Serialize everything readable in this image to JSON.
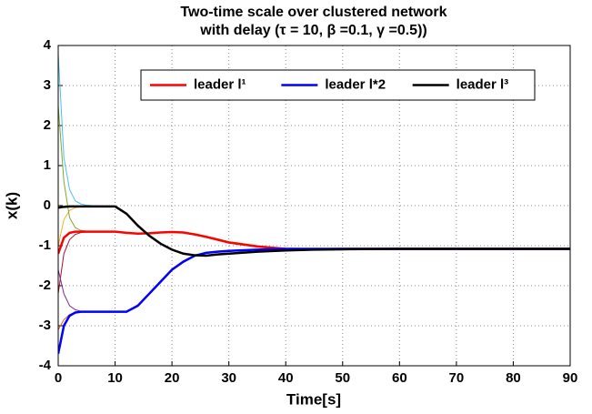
{
  "chart_data": {
    "type": "line",
    "title": [
      "Two-time scale over clustered network",
      "with delay (τ = 10, β =0.1, γ =0.5))"
    ],
    "xlabel": "Time[s]",
    "ylabel": "x(k)",
    "x": [
      0,
      1,
      2,
      3,
      4,
      5,
      6,
      8,
      10,
      12,
      14,
      16,
      18,
      20,
      22,
      24,
      26,
      28,
      30,
      35,
      40,
      45,
      50,
      60,
      70,
      80,
      90
    ],
    "xlim": [
      0,
      90
    ],
    "xticks": [
      0,
      10,
      20,
      30,
      40,
      50,
      60,
      70,
      80,
      90
    ],
    "ylim": [
      -4,
      4
    ],
    "yticks": [
      -4,
      -3,
      -2,
      -1,
      0,
      1,
      2,
      3,
      4
    ],
    "grid": true,
    "legend": "top",
    "followers": [
      {
        "color": "#4dbeee",
        "values": [
          3.8,
          1.2,
          0.4,
          0.12,
          0.04,
          0.01,
          0,
          -0.01,
          -0.02,
          -0.2,
          -0.5,
          -0.75,
          -0.95,
          -1.1,
          -1.2,
          -1.24,
          -1.25,
          -1.22,
          -1.2,
          -1.15,
          -1.12,
          -1.1,
          -1.09,
          -1.08,
          -1.08,
          -1.08,
          -1.08
        ]
      },
      {
        "color": "#edb120",
        "values": [
          -1.0,
          -0.35,
          -0.12,
          -0.05,
          -0.03,
          -0.02,
          -0.02,
          -0.02,
          -0.02,
          -0.22,
          -0.52,
          -0.76,
          -0.96,
          -1.1,
          -1.19,
          -1.23,
          -1.24,
          -1.22,
          -1.2,
          -1.15,
          -1.12,
          -1.1,
          -1.09,
          -1.08,
          -1.08,
          -1.08,
          -1.08
        ]
      },
      {
        "color": "#77ac30",
        "values": [
          2.5,
          0.6,
          -0.3,
          -0.55,
          -0.62,
          -0.64,
          -0.65,
          -0.65,
          -0.65,
          -0.67,
          -0.69,
          -0.68,
          -0.66,
          -0.65,
          -0.66,
          -0.7,
          -0.76,
          -0.83,
          -0.9,
          -1.0,
          -1.07,
          -1.09,
          -1.08,
          -1.08,
          -1.08,
          -1.08,
          -1.08
        ]
      },
      {
        "color": "#a2142f",
        "values": [
          -2.2,
          -1.2,
          -0.85,
          -0.72,
          -0.67,
          -0.66,
          -0.65,
          -0.65,
          -0.65,
          -0.68,
          -0.7,
          -0.69,
          -0.67,
          -0.66,
          -0.67,
          -0.71,
          -0.77,
          -0.84,
          -0.91,
          -1.01,
          -1.08,
          -1.09,
          -1.08,
          -1.08,
          -1.08,
          -1.08,
          -1.08
        ]
      },
      {
        "color": "#d95319",
        "values": [
          -3.1,
          -2.85,
          -2.72,
          -2.67,
          -2.65,
          -2.65,
          -2.65,
          -2.65,
          -2.65,
          -2.64,
          -2.48,
          -2.18,
          -1.88,
          -1.58,
          -1.38,
          -1.24,
          -1.17,
          -1.14,
          -1.12,
          -1.1,
          -1.08,
          -1.08,
          -1.08,
          -1.08,
          -1.08,
          -1.08,
          -1.08
        ]
      },
      {
        "color": "#7e2f8e",
        "values": [
          -1.6,
          -2.2,
          -2.5,
          -2.6,
          -2.64,
          -2.65,
          -2.65,
          -2.65,
          -2.65,
          -2.66,
          -2.52,
          -2.22,
          -1.92,
          -1.62,
          -1.42,
          -1.26,
          -1.19,
          -1.16,
          -1.14,
          -1.1,
          -1.08,
          -1.08,
          -1.08,
          -1.08,
          -1.08,
          -1.08,
          -1.08
        ]
      }
    ],
    "series": [
      {
        "name": "leader l¹",
        "color": "#ff0000",
        "values": [
          -1.2,
          -0.8,
          -0.68,
          -0.65,
          -0.65,
          -0.65,
          -0.65,
          -0.65,
          -0.65,
          -0.68,
          -0.7,
          -0.69,
          -0.67,
          -0.66,
          -0.67,
          -0.72,
          -0.78,
          -0.85,
          -0.92,
          -1.02,
          -1.08,
          -1.09,
          -1.08,
          -1.08,
          -1.08,
          -1.08,
          -1.08
        ]
      },
      {
        "name": "leader l*2",
        "color": "#0000ff",
        "values": [
          -3.7,
          -3.0,
          -2.75,
          -2.67,
          -2.65,
          -2.65,
          -2.65,
          -2.65,
          -2.65,
          -2.65,
          -2.5,
          -2.2,
          -1.9,
          -1.6,
          -1.4,
          -1.25,
          -1.18,
          -1.15,
          -1.13,
          -1.1,
          -1.08,
          -1.08,
          -1.08,
          -1.08,
          -1.08,
          -1.08,
          -1.08
        ]
      },
      {
        "name": "leader l³",
        "color": "#000000",
        "values": [
          -0.05,
          -0.03,
          -0.02,
          -0.02,
          -0.02,
          -0.02,
          -0.02,
          -0.02,
          -0.02,
          -0.2,
          -0.5,
          -0.75,
          -0.95,
          -1.1,
          -1.2,
          -1.24,
          -1.25,
          -1.22,
          -1.2,
          -1.15,
          -1.12,
          -1.1,
          -1.09,
          -1.08,
          -1.08,
          -1.08,
          -1.08
        ]
      }
    ]
  }
}
